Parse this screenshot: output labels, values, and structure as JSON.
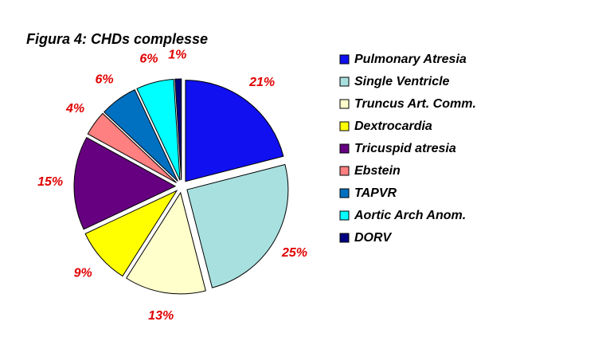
{
  "chart_data": {
    "type": "pie",
    "title": "Figura 4: CHDs complesse",
    "categories": [
      "Pulmonary Atresia",
      "Single Ventricle",
      "Truncus Art. Comm.",
      "Dextrocardia",
      "Tricuspid atresia",
      "Ebstein",
      "TAPVR",
      "Aortic Arch Anom.",
      "DORV"
    ],
    "values": [
      21,
      25,
      13,
      9,
      15,
      4,
      6,
      6,
      1
    ],
    "value_labels": [
      "21%",
      "25%",
      "13%",
      "9%",
      "15%",
      "4%",
      "6%",
      "6%",
      "1%"
    ],
    "colors": [
      "#1010f0",
      "#a8e0e0",
      "#ffffcc",
      "#ffff00",
      "#660080",
      "#ff8080",
      "#0070c0",
      "#00ffff",
      "#000080"
    ],
    "legend": "right"
  }
}
